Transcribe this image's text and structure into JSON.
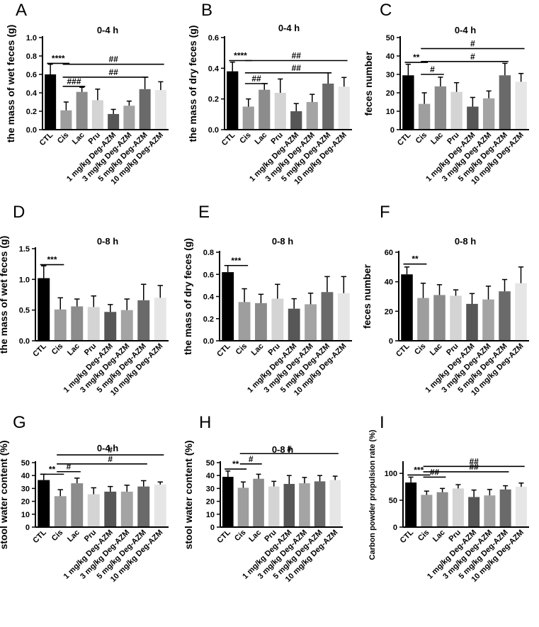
{
  "colors": [
    "#000000",
    "#9e9e9e",
    "#8c8c8c",
    "#d4d4d4",
    "#575757",
    "#a4a4a4",
    "#6a6a6a",
    "#e6e6e6"
  ],
  "chart_data": [
    {
      "type": "bar",
      "letter": "A",
      "title": "0-4 h",
      "ylabel": "the mass of wet feces (g)",
      "categories": [
        "CTL",
        "Cis",
        "Lac",
        "Pru",
        "1 mg/kg Deg-AZM",
        "3 mg/kg Deg-AZM",
        "5 mg/kg Deg-AZM",
        "10 mg/kg Deg-AZM"
      ],
      "values": [
        0.6,
        0.21,
        0.41,
        0.32,
        0.17,
        0.26,
        0.44,
        0.43
      ],
      "errors": [
        0.11,
        0.09,
        0.05,
        0.12,
        0.05,
        0.05,
        0.13,
        0.09
      ],
      "ylim": [
        0,
        1.0
      ],
      "yticks": [
        0.0,
        0.2,
        0.4,
        0.6,
        0.8,
        1.0
      ],
      "tick_labels": [
        "0.0",
        "0.2",
        "0.4",
        "0.6",
        "0.8",
        "1.0"
      ],
      "annotations": [
        {
          "from": 0,
          "to": 1,
          "y": 0.72,
          "text": "****"
        },
        {
          "from": 1,
          "to": 2,
          "y": 0.47,
          "text": "###"
        },
        {
          "from": 1,
          "to": 6,
          "y": 0.57,
          "text": "##"
        },
        {
          "from": 1,
          "to": 7,
          "y": 0.71,
          "text": "##"
        }
      ]
    },
    {
      "type": "bar",
      "letter": "B",
      "title": "0-4 h",
      "ylabel": "the mass of dry feces (g)",
      "categories": [
        "CTL",
        "Cis",
        "Lac",
        "Pru",
        "1 mg/kg Deg-AZM",
        "3 mg/kg Deg-AZM",
        "5 mg/kg Deg-AZM",
        "10 mg/kg Deg-AZM"
      ],
      "values": [
        0.38,
        0.15,
        0.26,
        0.24,
        0.12,
        0.18,
        0.3,
        0.28
      ],
      "errors": [
        0.06,
        0.05,
        0.04,
        0.09,
        0.05,
        0.05,
        0.07,
        0.06
      ],
      "ylim": [
        0,
        0.6
      ],
      "yticks": [
        0.0,
        0.2,
        0.4,
        0.6
      ],
      "tick_labels": [
        "0.0",
        "0.2",
        "0.4",
        "0.6"
      ],
      "annotations": [
        {
          "from": 0,
          "to": 1,
          "y": 0.45,
          "text": "****"
        },
        {
          "from": 1,
          "to": 2,
          "y": 0.3,
          "text": "##"
        },
        {
          "from": 1,
          "to": 6,
          "y": 0.37,
          "text": "##"
        },
        {
          "from": 1,
          "to": 7,
          "y": 0.45,
          "text": "##"
        }
      ]
    },
    {
      "type": "bar",
      "letter": "C",
      "title": "0-4 h",
      "ylabel": "feces number",
      "categories": [
        "CTL",
        "Cis",
        "Lac",
        "Pru",
        "1 mg/kg Deg-AZM",
        "3 mg/kg Deg-AZM",
        "5 mg/kg Deg-AZM",
        "10 mg/kg Deg-AZM"
      ],
      "values": [
        29.5,
        14,
        23.5,
        20.5,
        12.5,
        17,
        29.5,
        26
      ],
      "errors": [
        6,
        6,
        5,
        5,
        5,
        4,
        6.5,
        4.5
      ],
      "ylim": [
        0,
        50
      ],
      "yticks": [
        0,
        10,
        20,
        30,
        40,
        50
      ],
      "tick_labels": [
        "0",
        "10",
        "20",
        "30",
        "40",
        "50"
      ],
      "annotations": [
        {
          "from": 0,
          "to": 1,
          "y": 36.5,
          "text": "**"
        },
        {
          "from": 1,
          "to": 2,
          "y": 30,
          "text": "#"
        },
        {
          "from": 1,
          "to": 6,
          "y": 37,
          "text": "#"
        },
        {
          "from": 1,
          "to": 7,
          "y": 44,
          "text": "#"
        }
      ]
    },
    {
      "type": "bar",
      "letter": "D",
      "title": "0-8 h",
      "ylabel": "the mass of wet feces (g)",
      "categories": [
        "CTL",
        "Cis",
        "Lac",
        "Pru",
        "1 mg/kg Deg-AZM",
        "3 mg/kg Deg-AZM",
        "5 mg/kg Deg-AZM",
        "10 mg/kg Deg-AZM"
      ],
      "values": [
        1.02,
        0.51,
        0.56,
        0.55,
        0.47,
        0.5,
        0.66,
        0.7
      ],
      "errors": [
        0.2,
        0.19,
        0.12,
        0.18,
        0.12,
        0.18,
        0.26,
        0.2
      ],
      "ylim": [
        0,
        1.5
      ],
      "yticks": [
        0.0,
        0.5,
        1.0,
        1.5
      ],
      "tick_labels": [
        "0.0",
        "0.5",
        "1.0",
        "1.5"
      ],
      "annotations": [
        {
          "from": 0,
          "to": 1,
          "y": 1.24,
          "text": "***"
        }
      ]
    },
    {
      "type": "bar",
      "letter": "E",
      "title": "0-8 h",
      "ylabel": "the mass of dry feces (g)",
      "categories": [
        "CTL",
        "Cis",
        "Lac",
        "Pru",
        "1 mg/kg Deg-AZM",
        "3 mg/kg Deg-AZM",
        "5 mg/kg Deg-AZM",
        "10 mg/kg Deg-AZM"
      ],
      "values": [
        0.62,
        0.35,
        0.34,
        0.38,
        0.29,
        0.33,
        0.44,
        0.43
      ],
      "errors": [
        0.06,
        0.12,
        0.08,
        0.13,
        0.09,
        0.1,
        0.14,
        0.15
      ],
      "ylim": [
        0,
        0.8
      ],
      "yticks": [
        0.0,
        0.2,
        0.4,
        0.6,
        0.8
      ],
      "tick_labels": [
        "0.0",
        "0.2",
        "0.4",
        "0.6",
        "0.8"
      ],
      "annotations": [
        {
          "from": 0,
          "to": 1,
          "y": 0.68,
          "text": "***"
        }
      ]
    },
    {
      "type": "bar",
      "letter": "F",
      "title": "0-8 h",
      "ylabel": "feces number",
      "categories": [
        "CTL",
        "Cis",
        "Lac",
        "Pru",
        "1 mg/kg Deg-AZM",
        "3 mg/kg Deg-AZM",
        "5 mg/kg Deg-AZM",
        "10 mg/kg Deg-AZM"
      ],
      "values": [
        45,
        29,
        31,
        30.5,
        25,
        28,
        33.5,
        39
      ],
      "errors": [
        5,
        10,
        7,
        4,
        7,
        9,
        8,
        11
      ],
      "ylim": [
        0,
        60
      ],
      "yticks": [
        0,
        20,
        40,
        60
      ],
      "tick_labels": [
        "0",
        "20",
        "40",
        "60"
      ],
      "annotations": [
        {
          "from": 0,
          "to": 1,
          "y": 52,
          "text": "**"
        }
      ]
    },
    {
      "type": "bar",
      "letter": "G",
      "title": "0-4 h",
      "ylabel": "stool water content (%)",
      "categories": [
        "CTL",
        "Cis",
        "Lac",
        "Pru",
        "1 mg/kg Deg-AZM",
        "3 mg/kg Deg-AZM",
        "5 mg/kg Deg-AZM",
        "10 mg/kg Deg-AZM"
      ],
      "values": [
        36.5,
        24,
        34,
        25.5,
        27.5,
        27.5,
        31.5,
        33
      ],
      "errors": [
        4.5,
        5,
        4,
        5,
        4,
        5,
        4.5,
        2
      ],
      "ylim": [
        0,
        50
      ],
      "yticks": [
        0,
        10,
        20,
        30,
        40,
        50
      ],
      "tick_labels": [
        "0",
        "10",
        "20",
        "30",
        "40",
        "50"
      ],
      "annotations": [
        {
          "from": 0,
          "to": 1,
          "y": 41,
          "text": "**"
        },
        {
          "from": 1,
          "to": 2,
          "y": 43,
          "text": "#"
        },
        {
          "from": 1,
          "to": 6,
          "y": 49,
          "text": "#"
        },
        {
          "from": 1,
          "to": 7,
          "y": 56,
          "text": "#"
        }
      ]
    },
    {
      "type": "bar",
      "letter": "H",
      "title": "0-8 h",
      "ylabel": "stool water content (%)",
      "categories": [
        "CTL",
        "Cis",
        "Lac",
        "Pru",
        "1 mg/kg Deg-AZM",
        "3 mg/kg Deg-AZM",
        "5 mg/kg Deg-AZM",
        "10 mg/kg Deg-AZM"
      ],
      "values": [
        39,
        30.5,
        37.5,
        31.5,
        33.5,
        34,
        35.5,
        36.5
      ],
      "errors": [
        4.5,
        4.5,
        3.5,
        4,
        6.5,
        4.5,
        4.5,
        3
      ],
      "ylim": [
        0,
        50
      ],
      "yticks": [
        0,
        10,
        20,
        30,
        40,
        50
      ],
      "tick_labels": [
        "0",
        "10",
        "20",
        "30",
        "40",
        "50"
      ],
      "annotations": [
        {
          "from": 0,
          "to": 1,
          "y": 45,
          "text": "**"
        },
        {
          "from": 1,
          "to": 2,
          "y": 49,
          "text": "#"
        },
        {
          "from": 1,
          "to": 7,
          "y": 57,
          "text": "#"
        }
      ]
    },
    {
      "type": "bar",
      "letter": "I",
      "title": "",
      "ylabel": "Carbon powder propulsion rate (%)",
      "categories": [
        "CTL",
        "Cis",
        "Lac",
        "Pru",
        "1 mg/kg Deg-AZM",
        "3 mg/kg Deg-AZM",
        "5 mg/kg Deg-AZM",
        "10 mg/kg Deg-AZM"
      ],
      "values": [
        83,
        60,
        65,
        72,
        56,
        59,
        70,
        75
      ],
      "errors": [
        10,
        7,
        7,
        7,
        13,
        11,
        7,
        7
      ],
      "ylim": [
        0,
        120
      ],
      "yticks": [
        0,
        50,
        100
      ],
      "tick_labels": [
        "0",
        "50",
        "100"
      ],
      "annotations": [
        {
          "from": 0,
          "to": 1,
          "y": 97,
          "text": "***"
        },
        {
          "from": 1,
          "to": 2,
          "y": 93,
          "text": "##"
        },
        {
          "from": 1,
          "to": 6,
          "y": 103,
          "text": "##"
        },
        {
          "from": 1,
          "to": 7,
          "y": 113,
          "text": "##"
        }
      ]
    }
  ]
}
